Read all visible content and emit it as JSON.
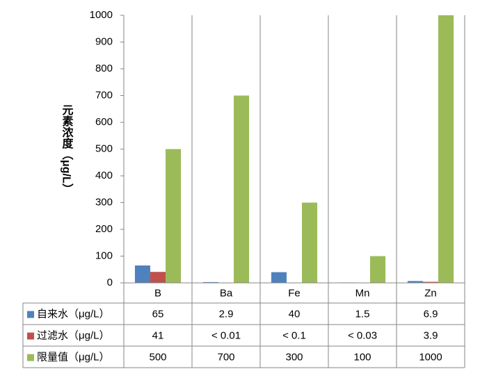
{
  "chart_data": {
    "type": "bar",
    "y_label": "元素浓度（μg/L）",
    "categories": [
      "B",
      "Ba",
      "Fe",
      "Mn",
      "Zn"
    ],
    "series": [
      {
        "name": "自来水（μg/L）",
        "color": "#4f81bd",
        "values": [
          65,
          2.9,
          40,
          1.5,
          6.9
        ]
      },
      {
        "name": "过滤水（μg/L）",
        "color": "#c0504d",
        "values": [
          41,
          0.01,
          0.1,
          0.03,
          3.9
        ],
        "value_labels": [
          "41",
          "< 0.01",
          "< 0.1",
          "< 0.03",
          "3.9"
        ]
      },
      {
        "name": "限量值（μg/L）",
        "color": "#9bbb59",
        "values": [
          500,
          700,
          300,
          100,
          1000
        ]
      }
    ],
    "ylim": [
      0,
      1000
    ],
    "yticks": [
      0,
      100,
      200,
      300,
      400,
      500,
      600,
      700,
      800,
      900,
      1000
    ],
    "grid": false
  }
}
